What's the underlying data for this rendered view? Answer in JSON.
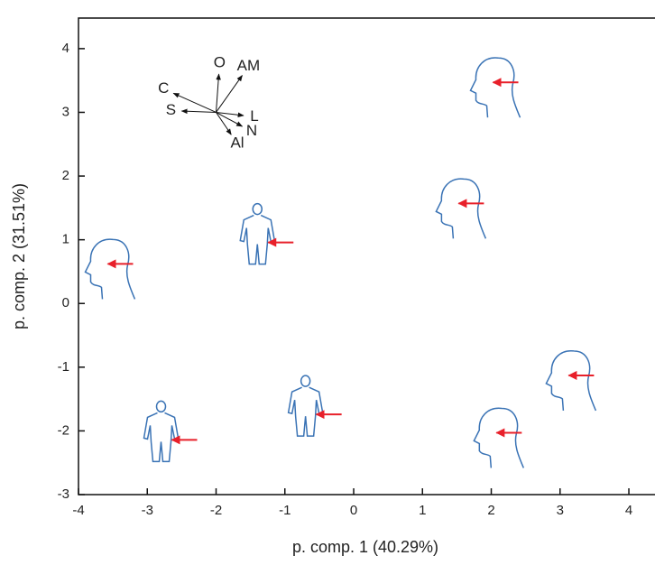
{
  "chart_data": {
    "type": "scatter",
    "xlabel": "p. comp. 1 (40.29%)",
    "ylabel": "p. comp. 2 (31.51%)",
    "xlim": [
      -4,
      4.38
    ],
    "ylim": [
      -3,
      4.48
    ],
    "xticks": [
      -4,
      -3,
      -2,
      -1,
      0,
      1,
      2,
      3,
      4
    ],
    "yticks": [
      -3,
      -2,
      -1,
      0,
      1,
      2,
      3,
      4
    ],
    "x": [
      2.0,
      1.5,
      -3.6,
      -1.4,
      -2.8,
      -0.7,
      3.1,
      2.05
    ],
    "y": [
      3.4,
      1.5,
      0.55,
      1.1,
      -2.0,
      -1.6,
      -1.2,
      -2.1
    ],
    "color": "#3a73b5",
    "arrow_color": "#e8202a",
    "vectors": {
      "origin": [
        -2,
        3
      ],
      "series": [
        {
          "name": "C",
          "x": -2.62,
          "y": 3.3
        },
        {
          "name": "S",
          "x": -2.5,
          "y": 3.02
        },
        {
          "name": "O",
          "x": -1.96,
          "y": 3.6
        },
        {
          "name": "AM",
          "x": -1.62,
          "y": 3.58
        },
        {
          "name": "L",
          "x": -1.6,
          "y": 2.95
        },
        {
          "name": "N",
          "x": -1.62,
          "y": 2.78
        },
        {
          "name": "Al",
          "x": -1.78,
          "y": 2.65
        }
      ]
    }
  }
}
